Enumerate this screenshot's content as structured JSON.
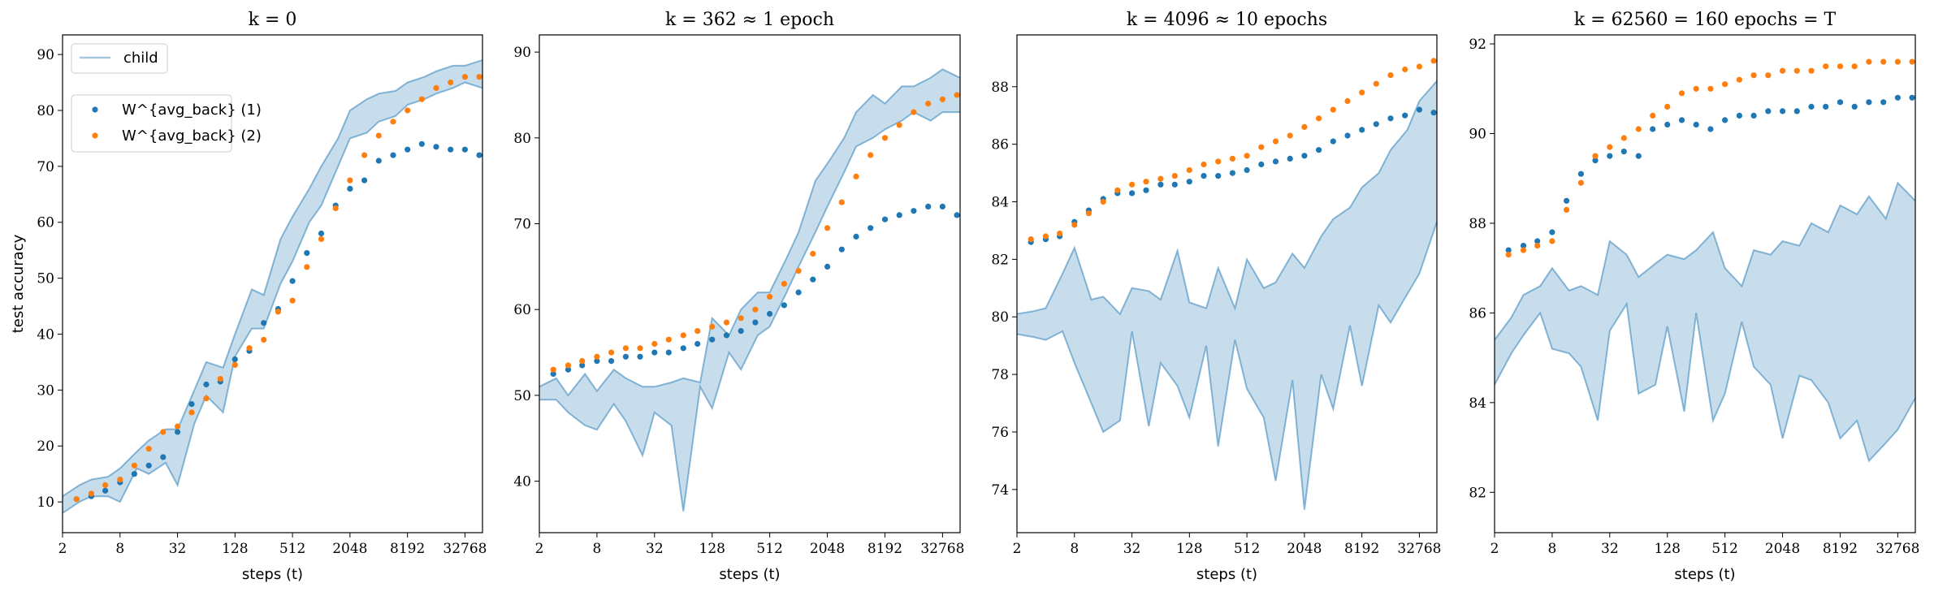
{
  "chart_data": [
    {
      "type": "line",
      "title": "k = 0",
      "xlabel": "steps (t)",
      "ylabel": "test accuracy",
      "x_scale": "log2",
      "x_ticks": [
        "2",
        "8",
        "32",
        "128",
        "512",
        "2048",
        "8192",
        "32768"
      ],
      "y_ticks": [
        10,
        20,
        30,
        40,
        50,
        60,
        70,
        80,
        90
      ],
      "xlim": [
        2,
        50000
      ],
      "ylim": [
        4.5,
        93.5
      ],
      "legend": {
        "placement": "top-left",
        "entries": [
          "child",
          "W^{avg_back} (1)",
          "W^{avg_back} (2)"
        ]
      },
      "series": [
        {
          "name": "child",
          "kind": "band",
          "color": "#1f77b4",
          "x": [
            2,
            3,
            4,
            6,
            8,
            12,
            16,
            24,
            32,
            48,
            64,
            96,
            128,
            192,
            256,
            384,
            512,
            768,
            1024,
            1536,
            2048,
            3072,
            4096,
            6144,
            8192,
            12288,
            16384,
            24576,
            32768,
            50000
          ],
          "upper": [
            11,
            13,
            14,
            14.5,
            16,
            19,
            21,
            23,
            23,
            30,
            35,
            34,
            40,
            48,
            47,
            57,
            61,
            66,
            70,
            75,
            80,
            82,
            83,
            83.5,
            85,
            86,
            87,
            88,
            88,
            89
          ],
          "lower": [
            8,
            10,
            11,
            11,
            10,
            16,
            15,
            17,
            13,
            24,
            29,
            26,
            36,
            41,
            41,
            49,
            53,
            60,
            63,
            70,
            75,
            76,
            78,
            79,
            81,
            82,
            83,
            84,
            85,
            84
          ]
        },
        {
          "name": "W^{avg_back} (1)",
          "kind": "scatter",
          "color": "#1f77b4",
          "x": [
            2.8,
            4,
            5.6,
            8,
            11.3,
            16,
            22.6,
            32,
            45,
            64,
            90,
            128,
            181,
            256,
            362,
            512,
            724,
            1024,
            1448,
            2048,
            2896,
            4096,
            5793,
            8192,
            11585,
            16384,
            23170,
            32768,
            46341
          ],
          "y": [
            10.5,
            11,
            12,
            13.5,
            15,
            16.5,
            18,
            22.5,
            27.5,
            31,
            31.5,
            35.5,
            37,
            42,
            44.5,
            49.5,
            54.5,
            58,
            63,
            66,
            67.5,
            71,
            72,
            73,
            74,
            73.5,
            73,
            73,
            72
          ]
        },
        {
          "name": "W^{avg_back} (2)",
          "kind": "scatter",
          "color": "#ff7f0e",
          "x": [
            2.8,
            4,
            5.6,
            8,
            11.3,
            16,
            22.6,
            32,
            45,
            64,
            90,
            128,
            181,
            256,
            362,
            512,
            724,
            1024,
            1448,
            2048,
            2896,
            4096,
            5793,
            8192,
            11585,
            16384,
            23170,
            32768,
            46341
          ],
          "y": [
            10.5,
            11.5,
            13,
            14,
            16.5,
            19.5,
            22.5,
            23.5,
            26,
            28.5,
            32,
            34.5,
            37.5,
            39,
            44,
            46,
            52,
            57,
            62.5,
            67.5,
            72,
            75.5,
            78,
            80,
            82,
            84,
            85,
            86,
            86
          ]
        }
      ]
    },
    {
      "type": "line",
      "title": "k = 362 ≈ 1 epoch",
      "xlabel": "steps (t)",
      "ylabel": "",
      "x_scale": "log2",
      "x_ticks": [
        "2",
        "8",
        "32",
        "128",
        "512",
        "2048",
        "8192",
        "32768"
      ],
      "y_ticks": [
        40,
        50,
        60,
        70,
        80,
        90
      ],
      "xlim": [
        2,
        50000
      ],
      "ylim": [
        34,
        92
      ],
      "series": [
        {
          "name": "child",
          "kind": "band",
          "color": "#1f77b4",
          "x": [
            2,
            3,
            4,
            6,
            8,
            12,
            16,
            24,
            32,
            48,
            64,
            96,
            128,
            192,
            256,
            384,
            512,
            768,
            1024,
            1536,
            2048,
            3072,
            4096,
            6144,
            8192,
            12288,
            16384,
            24576,
            32768,
            50000
          ],
          "upper": [
            51,
            52,
            50,
            52.5,
            50.5,
            53,
            52,
            51,
            51,
            51.5,
            52,
            51.5,
            59,
            57,
            60,
            62,
            62,
            66,
            69,
            75,
            77,
            80,
            83,
            85,
            84,
            86,
            86,
            87,
            88,
            87
          ],
          "lower": [
            49.5,
            49.5,
            48,
            46.5,
            46,
            49,
            47,
            43,
            48,
            46.5,
            36.5,
            51,
            48.5,
            55,
            53,
            57,
            58,
            62,
            65,
            69,
            72,
            76,
            79,
            80,
            81,
            82,
            83,
            82,
            83,
            83
          ]
        },
        {
          "name": "W^{avg_back} (1)",
          "kind": "scatter",
          "color": "#1f77b4",
          "x": [
            2.8,
            4,
            5.6,
            8,
            11.3,
            16,
            22.6,
            32,
            45,
            64,
            90,
            128,
            181,
            256,
            362,
            512,
            724,
            1024,
            1448,
            2048,
            2896,
            4096,
            5793,
            8192,
            11585,
            16384,
            23170,
            32768,
            46341
          ],
          "y": [
            52.5,
            53,
            53.5,
            54,
            54,
            54.5,
            54.5,
            55,
            55,
            55.5,
            56,
            56.5,
            57,
            57.5,
            58.5,
            59.5,
            60.5,
            62,
            63.5,
            65,
            67,
            68.5,
            69.5,
            70.5,
            71,
            71.5,
            72,
            72,
            71
          ]
        },
        {
          "name": "W^{avg_back} (2)",
          "kind": "scatter",
          "color": "#ff7f0e",
          "x": [
            2.8,
            4,
            5.6,
            8,
            11.3,
            16,
            22.6,
            32,
            45,
            64,
            90,
            128,
            181,
            256,
            362,
            512,
            724,
            1024,
            1448,
            2048,
            2896,
            4096,
            5793,
            8192,
            11585,
            16384,
            23170,
            32768,
            46341
          ],
          "y": [
            53,
            53.5,
            54,
            54.5,
            55,
            55.5,
            55.5,
            56,
            56.5,
            57,
            57.5,
            58,
            58.5,
            59,
            60,
            61.5,
            63,
            64.5,
            66.5,
            69.5,
            72.5,
            75.5,
            78,
            80,
            81.5,
            83,
            84,
            84.5,
            85
          ]
        }
      ]
    },
    {
      "type": "line",
      "title": "k = 4096 ≈ 10 epochs",
      "xlabel": "steps (t)",
      "ylabel": "",
      "x_scale": "log2",
      "x_ticks": [
        "2",
        "8",
        "32",
        "128",
        "512",
        "2048",
        "8192",
        "32768"
      ],
      "y_ticks": [
        74,
        76,
        78,
        80,
        82,
        84,
        86,
        88
      ],
      "xlim": [
        2,
        50000
      ],
      "ylim": [
        72.5,
        89.8
      ],
      "series": [
        {
          "name": "child",
          "kind": "band",
          "color": "#1f77b4",
          "x": [
            2,
            3,
            4,
            6,
            8,
            12,
            16,
            24,
            32,
            48,
            64,
            96,
            128,
            192,
            256,
            384,
            512,
            768,
            1024,
            1536,
            2048,
            3072,
            4096,
            6144,
            8192,
            12288,
            16384,
            24576,
            32768,
            50000
          ],
          "upper": [
            80.1,
            80.2,
            80.3,
            81.5,
            82.4,
            80.6,
            80.7,
            80.1,
            81,
            80.9,
            80.6,
            82.3,
            80.5,
            80.3,
            81.7,
            80.3,
            82,
            81,
            81.2,
            82.2,
            81.7,
            82.8,
            83.4,
            83.8,
            84.5,
            85,
            85.8,
            86.5,
            87.5,
            88.2
          ],
          "lower": [
            79.4,
            79.3,
            79.2,
            79.5,
            78.4,
            77,
            76,
            76.4,
            79.5,
            76.2,
            78.4,
            77.6,
            76.5,
            79,
            75.5,
            79.2,
            77.5,
            76.5,
            74.3,
            77.8,
            73.3,
            78,
            76.8,
            79.7,
            77.6,
            80.4,
            79.8,
            80.8,
            81.5,
            83.3
          ]
        },
        {
          "name": "W^{avg_back} (1)",
          "kind": "scatter",
          "color": "#1f77b4",
          "x": [
            2.8,
            4,
            5.6,
            8,
            11.3,
            16,
            22.6,
            32,
            45,
            64,
            90,
            128,
            181,
            256,
            362,
            512,
            724,
            1024,
            1448,
            2048,
            2896,
            4096,
            5793,
            8192,
            11585,
            16384,
            23170,
            32768,
            46341
          ],
          "y": [
            82.6,
            82.7,
            82.8,
            83.3,
            83.7,
            84.1,
            84.3,
            84.3,
            84.4,
            84.6,
            84.6,
            84.7,
            84.9,
            84.9,
            85,
            85.1,
            85.3,
            85.4,
            85.5,
            85.6,
            85.8,
            86.1,
            86.3,
            86.5,
            86.7,
            86.9,
            87,
            87.2,
            87.1
          ]
        },
        {
          "name": "W^{avg_back} (2)",
          "kind": "scatter",
          "color": "#ff7f0e",
          "x": [
            2.8,
            4,
            5.6,
            8,
            11.3,
            16,
            22.6,
            32,
            45,
            64,
            90,
            128,
            181,
            256,
            362,
            512,
            724,
            1024,
            1448,
            2048,
            2896,
            4096,
            5793,
            8192,
            11585,
            16384,
            23170,
            32768,
            46341
          ],
          "y": [
            82.7,
            82.8,
            82.9,
            83.2,
            83.6,
            84,
            84.4,
            84.6,
            84.7,
            84.8,
            84.9,
            85.1,
            85.3,
            85.4,
            85.5,
            85.6,
            85.9,
            86.1,
            86.3,
            86.6,
            86.9,
            87.2,
            87.5,
            87.8,
            88.1,
            88.4,
            88.6,
            88.7,
            88.9
          ]
        }
      ]
    },
    {
      "type": "line",
      "title": "k = 62560 = 160 epochs = T",
      "xlabel": "steps (t)",
      "ylabel": "",
      "x_scale": "log2",
      "x_ticks": [
        "2",
        "8",
        "32",
        "128",
        "512",
        "2048",
        "8192",
        "32768"
      ],
      "y_ticks": [
        82,
        84,
        86,
        88,
        90,
        92
      ],
      "xlim": [
        2,
        50000
      ],
      "ylim": [
        81.1,
        92.2
      ],
      "series": [
        {
          "name": "child",
          "kind": "band",
          "color": "#1f77b4",
          "x": [
            2,
            3,
            4,
            6,
            8,
            12,
            16,
            24,
            32,
            48,
            64,
            96,
            128,
            192,
            256,
            384,
            512,
            768,
            1024,
            1536,
            2048,
            3072,
            4096,
            6144,
            8192,
            12288,
            16384,
            24576,
            32768,
            50000
          ],
          "upper": [
            85.4,
            85.9,
            86.4,
            86.6,
            87,
            86.5,
            86.6,
            86.4,
            87.6,
            87.3,
            86.8,
            87.1,
            87.3,
            87.2,
            87.4,
            87.8,
            87,
            86.6,
            87.4,
            87.3,
            87.6,
            87.5,
            88,
            87.8,
            88.4,
            88.2,
            88.6,
            88.1,
            88.9,
            88.5
          ],
          "lower": [
            84.4,
            85.1,
            85.5,
            86,
            85.2,
            85.1,
            84.8,
            83.6,
            85.6,
            86.2,
            84.2,
            84.4,
            85.7,
            83.8,
            86,
            83.6,
            84.2,
            85.8,
            84.8,
            84.4,
            83.2,
            84.6,
            84.5,
            84,
            83.2,
            83.6,
            82.7,
            83.1,
            83.4,
            84.1
          ]
        },
        {
          "name": "W^{avg_back} (1)",
          "kind": "scatter",
          "color": "#1f77b4",
          "x": [
            2.8,
            4,
            5.6,
            8,
            11.3,
            16,
            22.6,
            32,
            45,
            64,
            90,
            128,
            181,
            256,
            362,
            512,
            724,
            1024,
            1448,
            2048,
            2896,
            4096,
            5793,
            8192,
            11585,
            16384,
            23170,
            32768,
            46341
          ],
          "y": [
            87.4,
            87.5,
            87.6,
            87.8,
            88.5,
            89.1,
            89.4,
            89.5,
            89.6,
            89.5,
            90.1,
            90.2,
            90.3,
            90.2,
            90.1,
            90.3,
            90.4,
            90.4,
            90.5,
            90.5,
            90.5,
            90.6,
            90.6,
            90.7,
            90.6,
            90.7,
            90.7,
            90.8,
            90.8
          ]
        },
        {
          "name": "W^{avg_back} (2)",
          "kind": "scatter",
          "color": "#ff7f0e",
          "x": [
            2.8,
            4,
            5.6,
            8,
            11.3,
            16,
            22.6,
            32,
            45,
            64,
            90,
            128,
            181,
            256,
            362,
            512,
            724,
            1024,
            1448,
            2048,
            2896,
            4096,
            5793,
            8192,
            11585,
            16384,
            23170,
            32768,
            46341
          ],
          "y": [
            87.3,
            87.4,
            87.5,
            87.6,
            88.3,
            88.9,
            89.5,
            89.7,
            89.9,
            90.1,
            90.4,
            90.6,
            90.9,
            91,
            91,
            91.1,
            91.2,
            91.3,
            91.3,
            91.4,
            91.4,
            91.4,
            91.5,
            91.5,
            91.5,
            91.6,
            91.6,
            91.6,
            91.6
          ]
        }
      ]
    }
  ]
}
